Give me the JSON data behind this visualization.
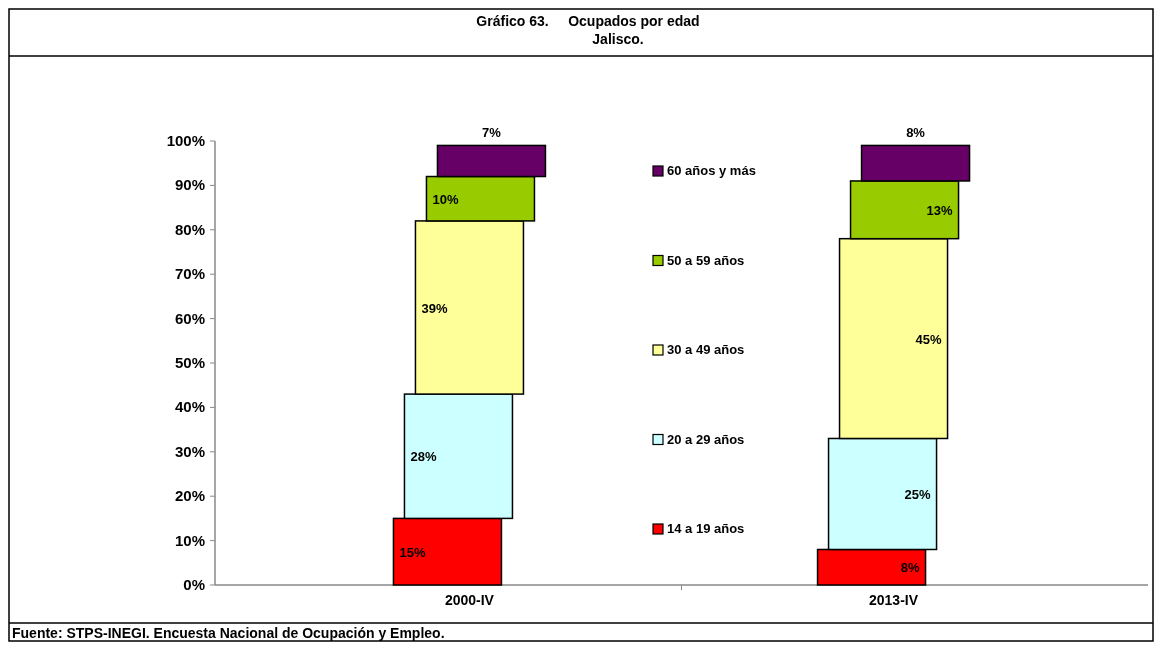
{
  "chart_data": {
    "type": "bar",
    "title": "Gráfico 63.     Ocupados por edad",
    "subtitle": "Jalisco.",
    "categories": [
      "2000-IV",
      "2013-IV"
    ],
    "stacked": true,
    "ylim": [
      0,
      100
    ],
    "yticks": [
      {
        "value": 0,
        "label": "0%"
      },
      {
        "value": 10,
        "label": "10%"
      },
      {
        "value": 20,
        "label": "20%"
      },
      {
        "value": 30,
        "label": "30%"
      },
      {
        "value": 40,
        "label": "40%"
      },
      {
        "value": 50,
        "label": "50%"
      },
      {
        "value": 60,
        "label": "60%"
      },
      {
        "value": 70,
        "label": "70%"
      },
      {
        "value": 80,
        "label": "80%"
      },
      {
        "value": 90,
        "label": "90%"
      },
      {
        "value": 100,
        "label": "100%"
      }
    ],
    "series": [
      {
        "name": "14 a 19 años",
        "color": "#ff0000",
        "values": [
          15,
          8
        ],
        "value_labels": [
          "15%",
          "8%"
        ]
      },
      {
        "name": "20 a 29 años",
        "color": "#ccffff",
        "values": [
          28,
          25
        ],
        "value_labels": [
          "28%",
          "25%"
        ]
      },
      {
        "name": "30 a 49 años",
        "color": "#ffff99",
        "values": [
          39,
          45
        ],
        "value_labels": [
          "39%",
          "45%"
        ]
      },
      {
        "name": "50 a 59 años",
        "color": "#99cc00",
        "values": [
          10,
          13
        ],
        "value_labels": [
          "10%",
          "13%"
        ]
      },
      {
        "name": "60 años y más",
        "color": "#660066",
        "values": [
          7,
          8
        ],
        "value_labels": [
          "7%",
          "8%"
        ]
      }
    ],
    "legend": "center",
    "grid": false,
    "annotations": [
      "Fuente: STPS-INEGI. Encuesta Nacional de Ocupación y Empleo."
    ]
  }
}
